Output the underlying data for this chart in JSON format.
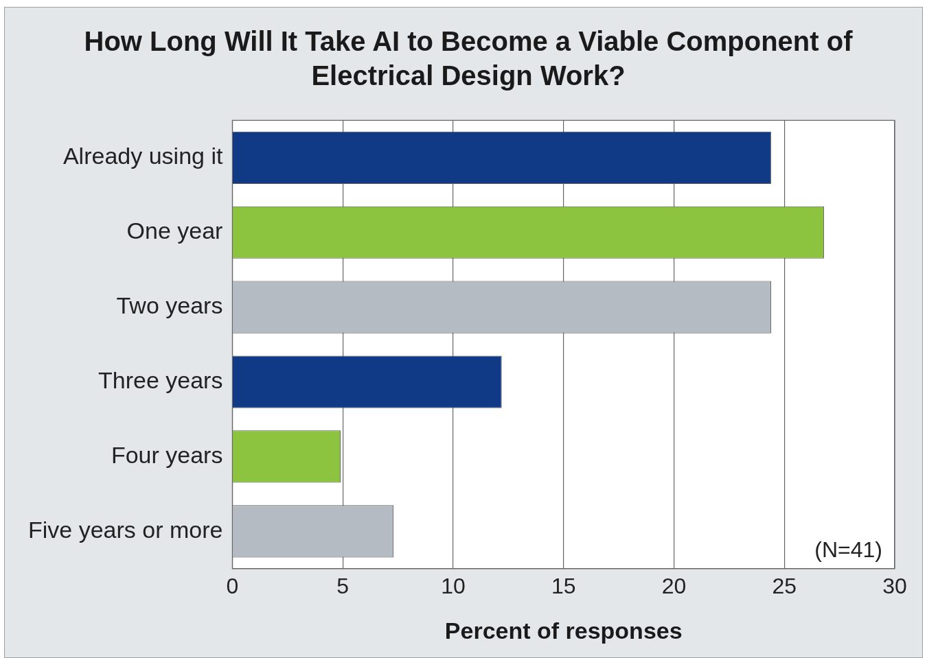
{
  "chart_data": {
    "type": "bar",
    "orientation": "horizontal",
    "title": "How Long Will It Take AI to Become a Viable Component of Electrical Design Work?",
    "categories": [
      "Already using it",
      "One year",
      "Two years",
      "Three years",
      "Four years",
      "Five years or more"
    ],
    "values": [
      24.4,
      26.8,
      24.4,
      12.2,
      4.9,
      7.3
    ],
    "colors": [
      "#103a86",
      "#8cc43f",
      "#b4bbc2",
      "#103a86",
      "#8cc43f",
      "#b4bbc2"
    ],
    "xlabel": "Percent of responses",
    "xlim": [
      0,
      30
    ],
    "xticks": [
      0,
      5,
      10,
      15,
      20,
      25,
      30
    ],
    "grid": "x",
    "legend": false,
    "annotations": [
      "(N=41)"
    ]
  }
}
